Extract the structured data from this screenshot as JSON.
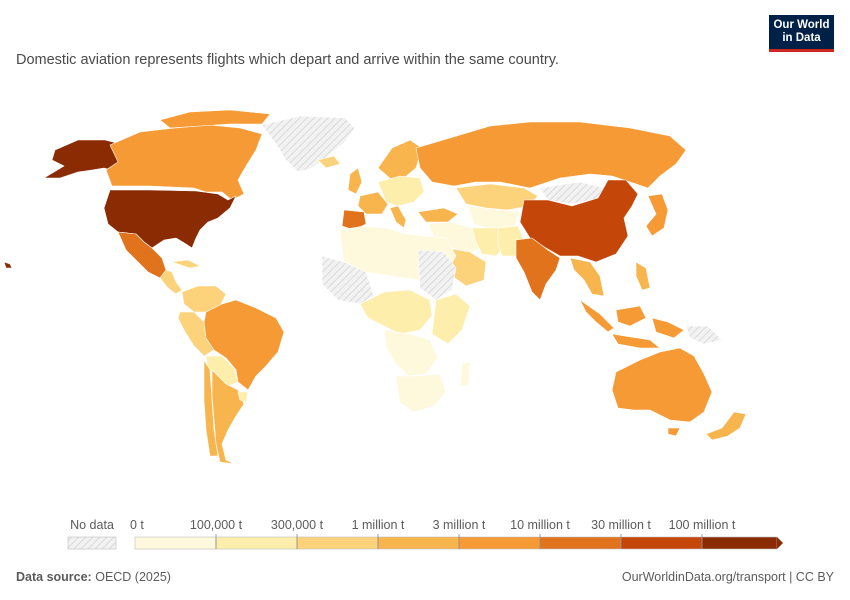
{
  "logo": {
    "line1": "Our World",
    "line2": "in Data"
  },
  "subtitle": "Domestic aviation represents flights which depart and arrive within the same country.",
  "legend": {
    "no_data_label": "No data",
    "bins": [
      {
        "label": "0 t",
        "color": "#fef9dc"
      },
      {
        "label": "100,000 t",
        "color": "#fdeeac"
      },
      {
        "label": "300,000 t",
        "color": "#fcd27b"
      },
      {
        "label": "1 million t",
        "color": "#f9b54d"
      },
      {
        "label": "3 million t",
        "color": "#f59a35"
      },
      {
        "label": "10 million t",
        "color": "#e2731d"
      },
      {
        "label": "30 million t",
        "color": "#c44609"
      },
      {
        "label": "100 million t",
        "color": "#8b2b04"
      }
    ]
  },
  "colors": {
    "no_data": "#e8e8e8",
    "us": "#8b2b04",
    "china": "#c44609",
    "india": "#e2731d",
    "mid_high": "#f59a35",
    "mid": "#f9b54d",
    "low": "#fcd27b",
    "very_low": "#fdeeac",
    "zero": "#fef9dc"
  },
  "footer": {
    "source_label": "Data source:",
    "source_value": "OECD (2025)",
    "link": "OurWorldinData.org/transport | CC BY"
  }
}
